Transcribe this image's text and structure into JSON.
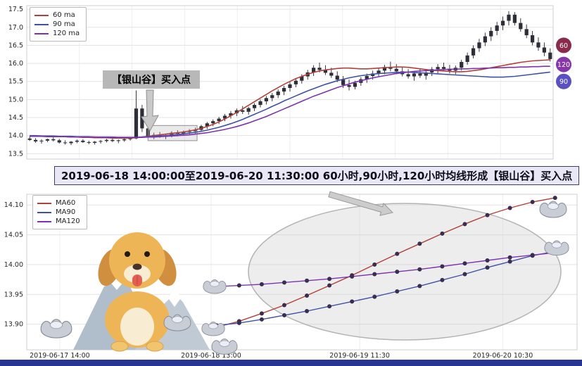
{
  "banner": {
    "text": "2019-06-18 14:00:00至2019-06-20 11:30:00 60小时,90小时,120小时均线形成【银山谷】买入点"
  },
  "page": {
    "background": "#ffffff",
    "bottom_bar_color": "#283593"
  },
  "icons": [
    "dog-mascot",
    "snow-mountains",
    "silver-yuanbao-ingot",
    "highlight-ellipse",
    "callout-arrow",
    "ma-badges"
  ],
  "chart_data": [
    {
      "type": "candlestick",
      "yticks": [
        13.5,
        14.0,
        14.5,
        15.0,
        15.5,
        16.0,
        16.5,
        17.0,
        17.5
      ],
      "ylim": [
        13.35,
        17.6
      ],
      "tick_decimals": 1,
      "candle_color": "#2e2e38",
      "annotation": {
        "label": "【银山谷】买入点",
        "box": {
          "i0": 20.5,
          "i1": 28.8,
          "v0": 13.86,
          "v1": 14.28
        }
      },
      "badges": [
        {
          "label": "60",
          "color": "#8a2b4a",
          "value": 16.5
        },
        {
          "label": "120",
          "color": "#8636a8",
          "value": 15.97
        },
        {
          "label": "90",
          "color": "#5b50c0",
          "value": 15.5
        }
      ],
      "candles": [
        [
          13.92,
          13.98,
          13.85,
          13.88
        ],
        [
          13.88,
          13.93,
          13.8,
          13.84
        ],
        [
          13.84,
          13.9,
          13.78,
          13.86
        ],
        [
          13.86,
          13.92,
          13.82,
          13.9
        ],
        [
          13.9,
          13.95,
          13.84,
          13.87
        ],
        [
          13.87,
          13.91,
          13.78,
          13.81
        ],
        [
          13.81,
          13.87,
          13.75,
          13.79
        ],
        [
          13.79,
          13.85,
          13.74,
          13.83
        ],
        [
          13.83,
          13.89,
          13.79,
          13.86
        ],
        [
          13.86,
          13.9,
          13.8,
          13.82
        ],
        [
          13.82,
          13.86,
          13.76,
          13.8
        ],
        [
          13.8,
          13.85,
          13.75,
          13.83
        ],
        [
          13.83,
          13.88,
          13.78,
          13.85
        ],
        [
          13.85,
          13.91,
          13.81,
          13.88
        ],
        [
          13.88,
          13.92,
          13.82,
          13.85
        ],
        [
          13.85,
          13.89,
          13.79,
          13.87
        ],
        [
          13.87,
          13.93,
          13.83,
          13.9
        ],
        [
          13.9,
          13.96,
          13.86,
          13.92
        ],
        [
          13.92,
          15.25,
          13.9,
          14.75
        ],
        [
          14.75,
          14.85,
          14.1,
          14.2
        ],
        [
          14.2,
          14.3,
          13.92,
          13.98
        ],
        [
          13.98,
          14.08,
          13.9,
          14.02
        ],
        [
          14.02,
          14.1,
          13.94,
          13.97
        ],
        [
          13.97,
          14.05,
          13.9,
          14.0
        ],
        [
          14.0,
          14.12,
          13.95,
          14.08
        ],
        [
          14.08,
          14.15,
          13.98,
          14.05
        ],
        [
          14.05,
          14.14,
          13.99,
          14.1
        ],
        [
          14.1,
          14.18,
          14.02,
          14.12
        ],
        [
          14.12,
          14.22,
          14.05,
          14.16
        ],
        [
          14.16,
          14.3,
          14.1,
          14.26
        ],
        [
          14.26,
          14.38,
          14.18,
          14.34
        ],
        [
          14.34,
          14.45,
          14.26,
          14.4
        ],
        [
          14.4,
          14.52,
          14.32,
          14.47
        ],
        [
          14.47,
          14.6,
          14.4,
          14.55
        ],
        [
          14.55,
          14.68,
          14.47,
          14.62
        ],
        [
          14.62,
          14.75,
          14.54,
          14.7
        ],
        [
          14.7,
          14.82,
          14.6,
          14.66
        ],
        [
          14.66,
          14.8,
          14.58,
          14.76
        ],
        [
          14.76,
          14.9,
          14.68,
          14.85
        ],
        [
          14.85,
          15.0,
          14.78,
          14.95
        ],
        [
          14.95,
          15.1,
          14.86,
          15.04
        ],
        [
          15.04,
          15.18,
          14.95,
          15.12
        ],
        [
          15.12,
          15.28,
          15.04,
          15.22
        ],
        [
          15.22,
          15.38,
          15.12,
          15.32
        ],
        [
          15.32,
          15.48,
          15.22,
          15.42
        ],
        [
          15.42,
          15.58,
          15.34,
          15.52
        ],
        [
          15.52,
          15.7,
          15.44,
          15.64
        ],
        [
          15.64,
          15.82,
          15.55,
          15.75
        ],
        [
          15.75,
          15.95,
          15.65,
          15.88
        ],
        [
          15.88,
          16.02,
          15.75,
          15.82
        ],
        [
          15.82,
          15.95,
          15.68,
          15.74
        ],
        [
          15.74,
          15.88,
          15.6,
          15.66
        ],
        [
          15.66,
          15.78,
          15.48,
          15.55
        ],
        [
          15.55,
          15.65,
          15.32,
          15.4
        ],
        [
          15.4,
          15.55,
          15.25,
          15.35
        ],
        [
          15.35,
          15.52,
          15.28,
          15.46
        ],
        [
          15.46,
          15.62,
          15.38,
          15.56
        ],
        [
          15.56,
          15.72,
          15.46,
          15.65
        ],
        [
          15.65,
          15.8,
          15.55,
          15.72
        ],
        [
          15.72,
          15.88,
          15.62,
          15.8
        ],
        [
          15.8,
          15.96,
          15.7,
          15.9
        ],
        [
          15.9,
          16.05,
          15.78,
          15.85
        ],
        [
          15.85,
          15.98,
          15.7,
          15.78
        ],
        [
          15.78,
          15.9,
          15.64,
          15.7
        ],
        [
          15.7,
          15.84,
          15.58,
          15.64
        ],
        [
          15.64,
          15.78,
          15.52,
          15.72
        ],
        [
          15.72,
          15.86,
          15.6,
          15.66
        ],
        [
          15.66,
          15.8,
          15.55,
          15.75
        ],
        [
          15.75,
          15.9,
          15.65,
          15.84
        ],
        [
          15.84,
          15.98,
          15.72,
          15.9
        ],
        [
          15.9,
          16.02,
          15.78,
          15.85
        ],
        [
          15.85,
          15.96,
          15.72,
          15.8
        ],
        [
          15.8,
          15.94,
          15.7,
          15.88
        ],
        [
          15.88,
          16.1,
          15.8,
          16.04
        ],
        [
          16.04,
          16.3,
          15.96,
          16.22
        ],
        [
          16.22,
          16.5,
          16.14,
          16.42
        ],
        [
          16.42,
          16.68,
          16.32,
          16.58
        ],
        [
          16.58,
          16.85,
          16.48,
          16.75
        ],
        [
          16.75,
          17.0,
          16.62,
          16.9
        ],
        [
          16.9,
          17.15,
          16.78,
          17.05
        ],
        [
          17.05,
          17.3,
          16.92,
          17.18
        ],
        [
          17.18,
          17.45,
          17.05,
          17.35
        ],
        [
          17.35,
          17.42,
          17.05,
          17.12
        ],
        [
          17.12,
          17.25,
          16.88,
          16.95
        ],
        [
          16.95,
          17.08,
          16.7,
          16.78
        ],
        [
          16.78,
          16.9,
          16.5,
          16.58
        ],
        [
          16.58,
          16.72,
          16.35,
          16.44
        ],
        [
          16.44,
          16.58,
          16.2,
          16.3
        ],
        [
          16.3,
          16.42,
          16.05,
          16.12
        ]
      ],
      "series": [
        {
          "name": "60 ma",
          "color": "#b0413a",
          "values": [
            14.0,
            13.99,
            13.99,
            13.98,
            13.98,
            13.97,
            13.97,
            13.96,
            13.96,
            13.95,
            13.95,
            13.94,
            13.94,
            13.94,
            13.93,
            13.93,
            13.93,
            13.93,
            13.94,
            13.96,
            13.98,
            14.0,
            14.02,
            14.04,
            14.06,
            14.08,
            14.1,
            14.13,
            14.16,
            14.2,
            14.25,
            14.31,
            14.38,
            14.46,
            14.55,
            14.64,
            14.74,
            14.84,
            14.94,
            15.04,
            15.14,
            15.24,
            15.33,
            15.42,
            15.5,
            15.58,
            15.64,
            15.7,
            15.75,
            15.79,
            15.82,
            15.84,
            15.86,
            15.87,
            15.87,
            15.86,
            15.85,
            15.85,
            15.86,
            15.87,
            15.88,
            15.89,
            15.9,
            15.9,
            15.89,
            15.87,
            15.85,
            15.83,
            15.81,
            15.8,
            15.79,
            15.78,
            15.77,
            15.77,
            15.78,
            15.8,
            15.82,
            15.85,
            15.88,
            15.91,
            15.94,
            15.97,
            16.0,
            16.03,
            16.05,
            16.07,
            16.08,
            16.09,
            16.1
          ]
        },
        {
          "name": "90 ma",
          "color": "#3f51a5",
          "values": [
            14.0,
            14.0,
            13.99,
            13.99,
            13.99,
            13.98,
            13.98,
            13.98,
            13.97,
            13.97,
            13.97,
            13.96,
            13.96,
            13.96,
            13.96,
            13.95,
            13.95,
            13.95,
            13.95,
            13.96,
            13.97,
            13.98,
            13.99,
            14.0,
            14.01,
            14.03,
            14.05,
            14.07,
            14.09,
            14.12,
            14.15,
            14.19,
            14.23,
            14.28,
            14.33,
            14.39,
            14.45,
            14.52,
            14.59,
            14.66,
            14.73,
            14.81,
            14.88,
            14.96,
            15.03,
            15.1,
            15.17,
            15.24,
            15.3,
            15.36,
            15.42,
            15.47,
            15.52,
            15.56,
            15.6,
            15.63,
            15.66,
            15.68,
            15.7,
            15.72,
            15.73,
            15.74,
            15.75,
            15.76,
            15.76,
            15.75,
            15.74,
            15.73,
            15.72,
            15.71,
            15.7,
            15.69,
            15.68,
            15.67,
            15.66,
            15.65,
            15.64,
            15.63,
            15.62,
            15.62,
            15.62,
            15.63,
            15.64,
            15.66,
            15.68,
            15.7,
            15.72,
            15.74,
            15.76
          ]
        },
        {
          "name": "120 ma",
          "color": "#7d33ad",
          "values": [
            13.98,
            13.98,
            13.98,
            13.97,
            13.97,
            13.97,
            13.97,
            13.96,
            13.96,
            13.96,
            13.96,
            13.96,
            13.95,
            13.95,
            13.95,
            13.95,
            13.95,
            13.95,
            13.95,
            13.95,
            13.96,
            13.96,
            13.97,
            13.98,
            13.99,
            14.0,
            14.01,
            14.02,
            14.04,
            14.06,
            14.08,
            14.11,
            14.14,
            14.17,
            14.21,
            14.25,
            14.3,
            14.35,
            14.41,
            14.47,
            14.53,
            14.6,
            14.67,
            14.74,
            14.81,
            14.88,
            14.95,
            15.02,
            15.09,
            15.15,
            15.21,
            15.27,
            15.33,
            15.38,
            15.43,
            15.48,
            15.52,
            15.56,
            15.6,
            15.63,
            15.66,
            15.69,
            15.72,
            15.74,
            15.76,
            15.78,
            15.79,
            15.8,
            15.81,
            15.82,
            15.83,
            15.84,
            15.84,
            15.85,
            15.85,
            15.86,
            15.86,
            15.87,
            15.87,
            15.88,
            15.88,
            15.89,
            15.89,
            15.9,
            15.9,
            15.91,
            15.91,
            15.92,
            15.92
          ]
        }
      ]
    },
    {
      "type": "line",
      "x_tick_labels": [
        "2019-06-17 14:00",
        "2019-06-18 13:00",
        "2019-06-19 11:30",
        "2019-06-20 10:30"
      ],
      "yticks": [
        13.9,
        13.95,
        14.0,
        14.05,
        14.1
      ],
      "ylim": [
        13.857,
        14.118
      ],
      "tick_decimals": 2,
      "marker_color": "#3a2d52",
      "series": [
        {
          "name": "MA60",
          "color": "#b0413a",
          "values": [
            13.895,
            13.905,
            13.918,
            13.932,
            13.948,
            13.965,
            13.982,
            14.0,
            14.018,
            14.035,
            14.052,
            14.068,
            14.083,
            14.095,
            14.105,
            14.112
          ]
        },
        {
          "name": "MA90",
          "color": "#3f51a5",
          "values": [
            13.898,
            13.902,
            13.908,
            13.915,
            13.922,
            13.93,
            13.938,
            13.946,
            13.955,
            13.964,
            13.974,
            13.984,
            13.995,
            14.005,
            14.015,
            14.022
          ]
        },
        {
          "name": "MA120",
          "color": "#7d33ad",
          "values": [
            13.963,
            13.965,
            13.967,
            13.97,
            13.973,
            13.976,
            13.98,
            13.984,
            13.988,
            13.992,
            13.997,
            14.002,
            14.007,
            14.012,
            14.016,
            14.02
          ]
        }
      ]
    }
  ]
}
